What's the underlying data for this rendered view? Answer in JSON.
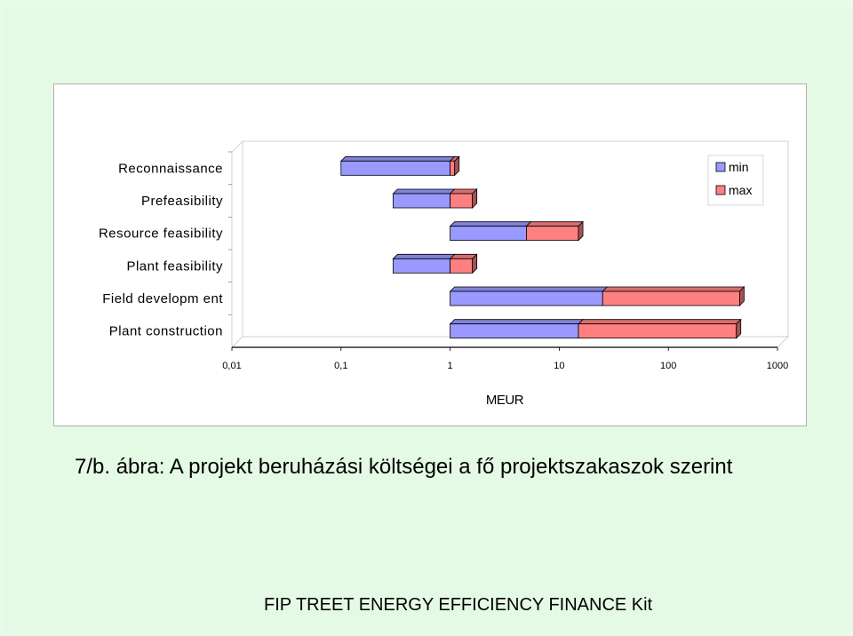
{
  "caption": "7/b. ábra: A projekt beruházási költségei a fő projektszakaszok szerint",
  "footer": "FIP TREET ENERGY EFFICIENCY FINANCE Kit",
  "colors": {
    "min": "#9999ff",
    "max": "#ff8080"
  },
  "chart_data": {
    "type": "bar",
    "orientation": "horizontal",
    "stacked": true,
    "x_scale": "log",
    "xlim": [
      0.01,
      1000
    ],
    "xlabel": "MEUR",
    "tick_labels": [
      "0,01",
      "0,1",
      "1",
      "10",
      "100",
      "1000"
    ],
    "categories": [
      "Reconnaissance",
      "Prefeasibility",
      "Resource feasibility",
      "Plant feasibility",
      "Field developm ent",
      "Plant construction"
    ],
    "series": [
      {
        "name": "min",
        "start": [
          0.1,
          0.3,
          1,
          0.3,
          1,
          1
        ],
        "end": [
          1,
          1,
          5,
          1,
          25,
          15
        ]
      },
      {
        "name": "max",
        "start": [
          1,
          1,
          5,
          1,
          25,
          15
        ],
        "end": [
          1.1,
          1.6,
          15,
          1.6,
          450,
          420
        ]
      }
    ],
    "grid": false,
    "legend": "top-right"
  }
}
